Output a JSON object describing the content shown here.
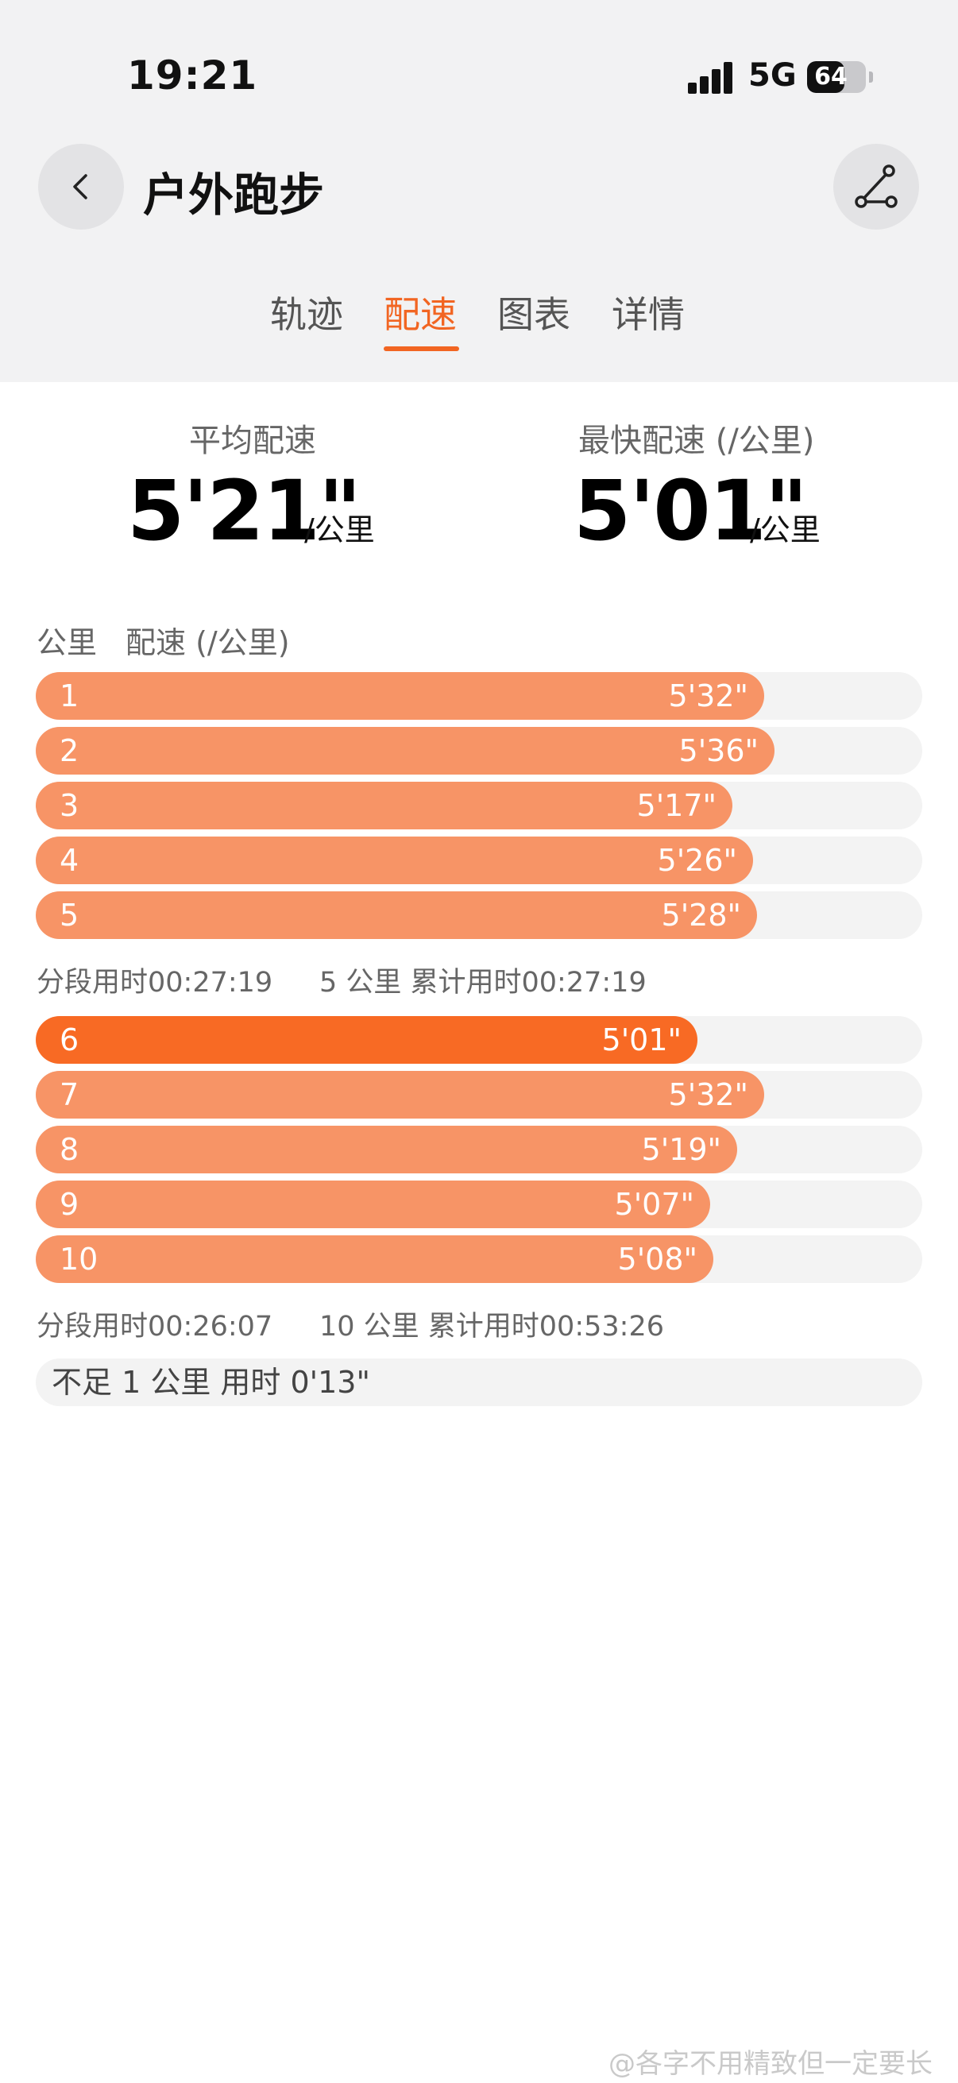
{
  "status_bar": {
    "time": "19:21",
    "network": "5G",
    "battery": "64",
    "battery_level": 0.64
  },
  "header": {
    "title": "户外跑步",
    "back_icon": "chevron-left-icon",
    "route_icon": "route-icon"
  },
  "tabs": [
    {
      "label": "轨迹",
      "active": false
    },
    {
      "label": "配速",
      "active": true
    },
    {
      "label": "图表",
      "active": false
    },
    {
      "label": "详情",
      "active": false
    }
  ],
  "summary": {
    "avg_label": "平均配速",
    "avg_value": "5'21\"",
    "avg_unit": "/公里",
    "fast_label": "最快配速 (/公里)",
    "fast_value": "5'01\"",
    "fast_unit": "/公里"
  },
  "table_header": {
    "km": "公里",
    "pace": "配速 (/公里)"
  },
  "laps": [
    {
      "km": "1",
      "pace": "5'32\"",
      "fraction": 0.822,
      "fastest": false
    },
    {
      "km": "2",
      "pace": "5'36\"",
      "fraction": 0.833,
      "fastest": false
    },
    {
      "km": "3",
      "pace": "5'17\"",
      "fraction": 0.786,
      "fastest": false
    },
    {
      "km": "4",
      "pace": "5'26\"",
      "fraction": 0.809,
      "fastest": false
    },
    {
      "km": "5",
      "pace": "5'28\"",
      "fraction": 0.814,
      "fastest": false
    },
    {
      "km": "6",
      "pace": "5'01\"",
      "fraction": 0.746,
      "fastest": true
    },
    {
      "km": "7",
      "pace": "5'32\"",
      "fraction": 0.822,
      "fastest": false
    },
    {
      "km": "8",
      "pace": "5'19\"",
      "fraction": 0.791,
      "fastest": false
    },
    {
      "km": "9",
      "pace": "5'07\"",
      "fraction": 0.761,
      "fastest": false
    },
    {
      "km": "10",
      "pace": "5'08\"",
      "fraction": 0.764,
      "fastest": false
    }
  ],
  "splits": [
    {
      "segment": "分段用时00:27:19",
      "cumulative": "5 公里 累计用时00:27:19"
    },
    {
      "segment": "分段用时00:26:07",
      "cumulative": "10 公里 累计用时00:53:26"
    }
  ],
  "remainder": "不足 1 公里 用时 0'13\"",
  "watermark": "@各字不用精致但一定要长",
  "colors": {
    "accent": "#f26522",
    "bar": "#f79466",
    "bar_fastest": "#f86a24",
    "track": "#f3f3f3"
  }
}
